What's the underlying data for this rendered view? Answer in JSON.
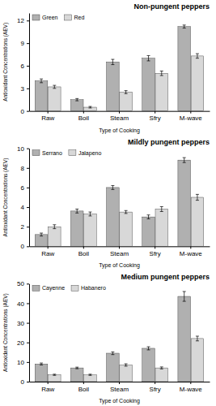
{
  "chart_data": [
    {
      "type": "bar",
      "title": "Non-pungent peppers",
      "xlabel": "Type of Cooking",
      "ylabel": "Antioxidant Concentrations (AEV)",
      "categories": [
        "Raw",
        "Boil",
        "Steam",
        "Sfry",
        "M-wave"
      ],
      "series": [
        {
          "name": "Green",
          "color": "#b0b0b0",
          "values": [
            4.0,
            1.5,
            6.5,
            7.0,
            11.2
          ],
          "errors": [
            0.25,
            0.15,
            0.35,
            0.35,
            0.2
          ]
        },
        {
          "name": "Red",
          "color": "#d8d8d8",
          "values": [
            3.2,
            0.5,
            2.5,
            5.0,
            7.3
          ],
          "errors": [
            0.2,
            0.1,
            0.2,
            0.3,
            0.3
          ]
        }
      ],
      "ylim": [
        0,
        13
      ],
      "yticks": [
        0,
        3,
        6,
        9,
        12
      ],
      "grid": false,
      "legend": "upper left"
    },
    {
      "type": "bar",
      "title": "Mildly pungent peppers",
      "xlabel": "Type of Cooking",
      "ylabel": "Antioxidant Concentrations (AEV)",
      "categories": [
        "Raw",
        "Boil",
        "Steam",
        "Sfry",
        "M-wave"
      ],
      "series": [
        {
          "name": "Serrano",
          "color": "#b0b0b0",
          "values": [
            1.2,
            3.6,
            6.0,
            3.0,
            8.8
          ],
          "errors": [
            0.15,
            0.2,
            0.2,
            0.2,
            0.25
          ]
        },
        {
          "name": "Jalapeno",
          "color": "#d8d8d8",
          "values": [
            2.0,
            3.3,
            3.5,
            3.8,
            5.0
          ],
          "errors": [
            0.2,
            0.2,
            0.15,
            0.25,
            0.3
          ]
        }
      ],
      "ylim": [
        0,
        10
      ],
      "yticks": [
        0,
        2,
        4,
        6,
        8,
        10
      ],
      "grid": false,
      "legend": "upper left"
    },
    {
      "type": "bar",
      "title": "Medium pungent peppers",
      "xlabel": "Type of Cooking",
      "ylabel": "Antioxidant Concentrations (AEV)",
      "categories": [
        "Raw",
        "Boil",
        "Steam",
        "Sfry",
        "M-wave"
      ],
      "series": [
        {
          "name": "Cayenne",
          "color": "#b0b0b0",
          "values": [
            9.0,
            7.0,
            14.5,
            17.0,
            43.5
          ],
          "errors": [
            0.5,
            0.4,
            0.7,
            0.8,
            2.5
          ]
        },
        {
          "name": "Habanero",
          "color": "#d8d8d8",
          "values": [
            3.5,
            3.5,
            8.5,
            7.0,
            22.0
          ],
          "errors": [
            0.3,
            0.3,
            0.6,
            0.5,
            1.2
          ]
        }
      ],
      "ylim": [
        0,
        50
      ],
      "yticks": [
        0,
        10,
        20,
        30,
        40,
        50
      ],
      "grid": false,
      "legend": "upper left"
    }
  ]
}
